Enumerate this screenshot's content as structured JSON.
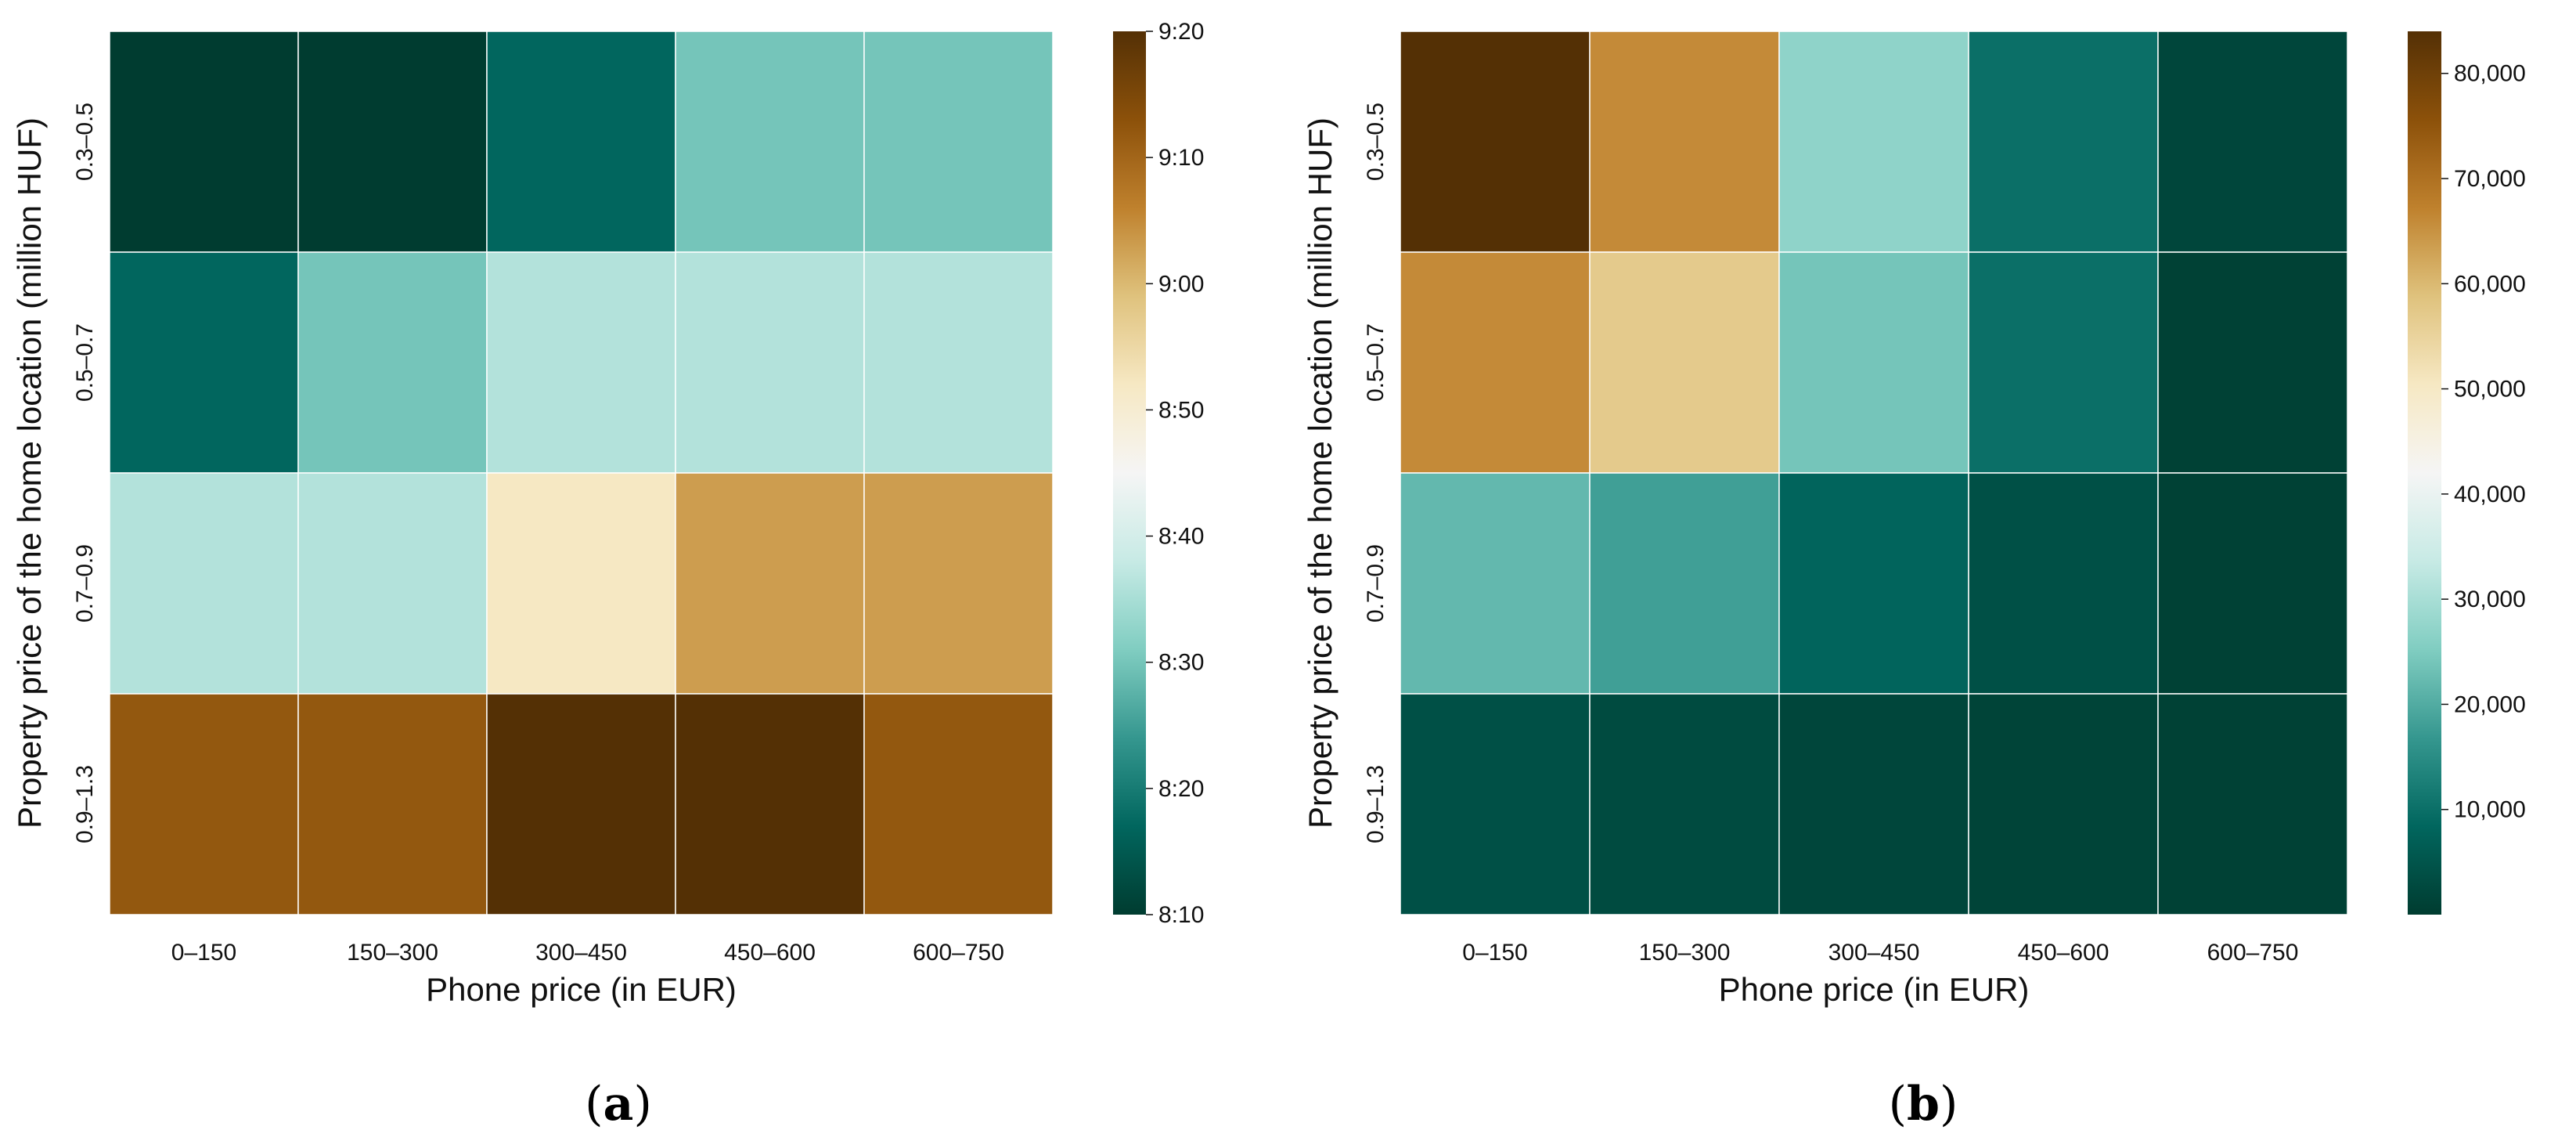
{
  "chart_data": [
    {
      "type": "heatmap",
      "panel_label": "a",
      "xlabel": "Phone price (in EUR)",
      "ylabel": "Property price of the home location (million HUF)",
      "x_categories": [
        "0–150",
        "150–300",
        "300–450",
        "450–600",
        "600–750"
      ],
      "y_categories": [
        "0.3–0.5",
        "0.5–0.7",
        "0.7–0.9",
        "0.9–1.3"
      ],
      "values_minutes": [
        [
          490,
          490,
          497,
          510,
          510
        ],
        [
          497,
          510,
          516,
          516,
          516
        ],
        [
          516,
          516,
          532,
          543,
          543
        ],
        [
          552,
          552,
          560,
          560,
          552
        ]
      ],
      "colorbar": {
        "range_minutes": [
          490,
          560
        ],
        "ticks_minutes": [
          490,
          500,
          510,
          520,
          530,
          540,
          550,
          560
        ],
        "tick_labels": [
          "8:10",
          "8:20",
          "8:30",
          "8:40",
          "8:50",
          "9:00",
          "9:10",
          "9:20"
        ]
      },
      "colormap": "BrBG_r"
    },
    {
      "type": "heatmap",
      "panel_label": "b",
      "xlabel": "Phone price (in EUR)",
      "ylabel": "Property price of the home location (million HUF)",
      "x_categories": [
        "0–150",
        "150–300",
        "300–450",
        "450–600",
        "600–750"
      ],
      "y_categories": [
        "0.3–0.5",
        "0.5–0.7",
        "0.7–0.9",
        "0.9–1.3"
      ],
      "values": [
        [
          84000,
          66000,
          27000,
          10000,
          2000
        ],
        [
          66000,
          57000,
          24000,
          10000,
          1000
        ],
        [
          22000,
          18000,
          8000,
          4000,
          1000
        ],
        [
          4000,
          3000,
          2000,
          1500,
          1000
        ]
      ],
      "colorbar": {
        "range": [
          0,
          84000
        ],
        "ticks": [
          10000,
          20000,
          30000,
          40000,
          50000,
          60000,
          70000,
          80000
        ],
        "tick_labels": [
          "10,000",
          "20,000",
          "30,000",
          "40,000",
          "50,000",
          "60,000",
          "70,000",
          "80,000"
        ]
      },
      "colormap": "BrBG_r"
    }
  ]
}
